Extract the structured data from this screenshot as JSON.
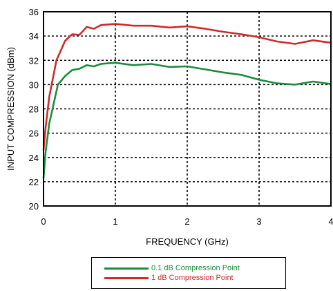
{
  "chart_data": {
    "type": "line",
    "title": "",
    "xlabel": "FREQUENCY (GHz)",
    "ylabel": "INPUT COMPRESSION (dBm)",
    "xlim": [
      0,
      4
    ],
    "ylim": [
      20,
      36
    ],
    "x_ticks": [
      "0",
      "1",
      "2",
      "3",
      "4"
    ],
    "y_ticks": [
      "20",
      "22",
      "24",
      "26",
      "28",
      "30",
      "32",
      "34",
      "36"
    ],
    "grid": "dotted",
    "legend_position": "below",
    "series": [
      {
        "name": "0.1 dB Compression Point",
        "color": "#1a8c3c",
        "points": [
          [
            0.0,
            22.3
          ],
          [
            0.03,
            24.5
          ],
          [
            0.08,
            26.8
          ],
          [
            0.14,
            28.4
          ],
          [
            0.2,
            30.0
          ],
          [
            0.3,
            30.7
          ],
          [
            0.4,
            31.2
          ],
          [
            0.5,
            31.3
          ],
          [
            0.6,
            31.6
          ],
          [
            0.7,
            31.5
          ],
          [
            0.8,
            31.7
          ],
          [
            0.9,
            31.75
          ],
          [
            1.0,
            31.8
          ],
          [
            1.25,
            31.6
          ],
          [
            1.5,
            31.7
          ],
          [
            1.75,
            31.45
          ],
          [
            2.0,
            31.5
          ],
          [
            2.25,
            31.25
          ],
          [
            2.5,
            31.0
          ],
          [
            2.75,
            30.8
          ],
          [
            3.0,
            30.4
          ],
          [
            3.25,
            30.1
          ],
          [
            3.5,
            30.0
          ],
          [
            3.75,
            30.25
          ],
          [
            4.0,
            30.05
          ]
        ]
      },
      {
        "name": "1 dB Compression Point",
        "color": "#cc2b2b",
        "points": [
          [
            0.0,
            24.6
          ],
          [
            0.03,
            26.5
          ],
          [
            0.08,
            29.0
          ],
          [
            0.18,
            32.0
          ],
          [
            0.3,
            33.6
          ],
          [
            0.4,
            34.15
          ],
          [
            0.5,
            34.1
          ],
          [
            0.6,
            34.75
          ],
          [
            0.7,
            34.6
          ],
          [
            0.8,
            34.9
          ],
          [
            1.0,
            35.0
          ],
          [
            1.25,
            34.85
          ],
          [
            1.5,
            34.85
          ],
          [
            1.75,
            34.7
          ],
          [
            2.0,
            34.8
          ],
          [
            2.25,
            34.6
          ],
          [
            2.5,
            34.35
          ],
          [
            2.75,
            34.15
          ],
          [
            3.0,
            33.9
          ],
          [
            3.25,
            33.55
          ],
          [
            3.5,
            33.35
          ],
          [
            3.75,
            33.65
          ],
          [
            4.0,
            33.45
          ]
        ]
      }
    ]
  }
}
